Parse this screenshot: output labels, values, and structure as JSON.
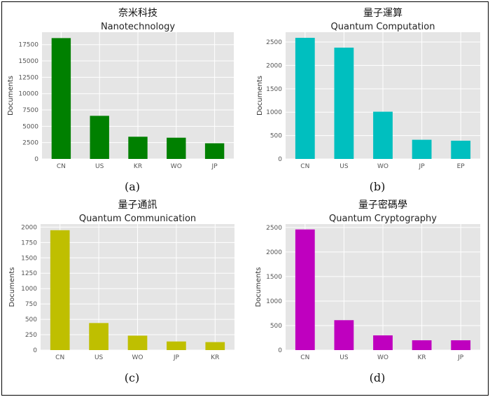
{
  "chart_data": [
    {
      "type": "bar",
      "panel": "(a)",
      "title_zh": "奈米科技",
      "title": "Nanotechnology",
      "ylabel": "Documents",
      "categories": [
        "CN",
        "US",
        "KR",
        "WO",
        "JP"
      ],
      "values": [
        18500,
        6600,
        3400,
        3250,
        2400
      ],
      "ylim": [
        0,
        19400
      ],
      "yticks": [
        0,
        2500,
        5000,
        7500,
        10000,
        12500,
        15000,
        17500
      ],
      "color": "#008000",
      "grid": true
    },
    {
      "type": "bar",
      "panel": "(b)",
      "title_zh": "量子運算",
      "title": "Quantum Computation",
      "ylabel": "Documents",
      "categories": [
        "CN",
        "US",
        "WO",
        "JP",
        "EP"
      ],
      "values": [
        2590,
        2380,
        1010,
        410,
        390
      ],
      "ylim": [
        0,
        2710
      ],
      "yticks": [
        0,
        500,
        1000,
        1500,
        2000,
        2500
      ],
      "color": "#00bfbf",
      "grid": true
    },
    {
      "type": "bar",
      "panel": "(c)",
      "title_zh": "量子通訊",
      "title": "Quantum Communication",
      "ylabel": "Documents",
      "categories": [
        "CN",
        "US",
        "WO",
        "JP",
        "KR"
      ],
      "values": [
        1950,
        440,
        235,
        140,
        130
      ],
      "ylim": [
        0,
        2050
      ],
      "yticks": [
        0,
        250,
        500,
        750,
        1000,
        1250,
        1500,
        1750,
        2000
      ],
      "color": "#bfbf00",
      "grid": true
    },
    {
      "type": "bar",
      "panel": "(d)",
      "title_zh": "量子密碼學",
      "title": "Quantum Cryptography",
      "ylabel": "Documents",
      "categories": [
        "CN",
        "US",
        "WO",
        "KR",
        "JP"
      ],
      "values": [
        2460,
        610,
        300,
        200,
        200
      ],
      "ylim": [
        0,
        2570
      ],
      "yticks": [
        0,
        500,
        1000,
        1500,
        2000,
        2500
      ],
      "color": "#bf00bf",
      "grid": true
    }
  ]
}
